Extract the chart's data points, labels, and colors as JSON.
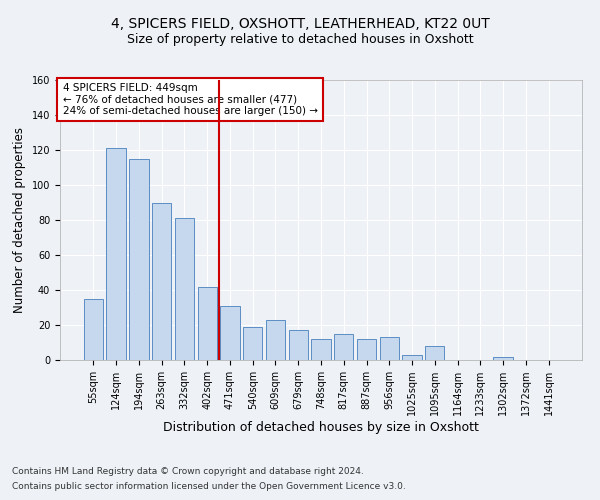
{
  "title1": "4, SPICERS FIELD, OXSHOTT, LEATHERHEAD, KT22 0UT",
  "title2": "Size of property relative to detached houses in Oxshott",
  "xlabel": "Distribution of detached houses by size in Oxshott",
  "ylabel": "Number of detached properties",
  "categories": [
    "55sqm",
    "124sqm",
    "194sqm",
    "263sqm",
    "332sqm",
    "402sqm",
    "471sqm",
    "540sqm",
    "609sqm",
    "679sqm",
    "748sqm",
    "817sqm",
    "887sqm",
    "956sqm",
    "1025sqm",
    "1095sqm",
    "1164sqm",
    "1233sqm",
    "1302sqm",
    "1372sqm",
    "1441sqm"
  ],
  "values": [
    35,
    121,
    115,
    90,
    81,
    42,
    31,
    19,
    23,
    17,
    12,
    15,
    12,
    13,
    3,
    8,
    0,
    0,
    2,
    0,
    0
  ],
  "bar_color": "#c5d8ee",
  "bar_edge_color": "#5b8ec4",
  "vline_x_index": 5.5,
  "vline_color": "#cc0000",
  "annotation_line1": "4 SPICERS FIELD: 449sqm",
  "annotation_line2": "← 76% of detached houses are smaller (477)",
  "annotation_line3": "24% of semi-detached houses are larger (150) →",
  "annotation_box_color": "#cc0000",
  "ylim": [
    0,
    160
  ],
  "yticks": [
    0,
    20,
    40,
    60,
    80,
    100,
    120,
    140,
    160
  ],
  "footer1": "Contains HM Land Registry data © Crown copyright and database right 2024.",
  "footer2": "Contains public sector information licensed under the Open Government Licence v3.0.",
  "background_color": "#eef2f7",
  "plot_bg_color": "#eef2f7",
  "title1_fontsize": 10,
  "title2_fontsize": 9,
  "tick_fontsize": 7,
  "ylabel_fontsize": 8.5,
  "xlabel_fontsize": 9,
  "annotation_fontsize": 7.5,
  "footer_fontsize": 6.5
}
